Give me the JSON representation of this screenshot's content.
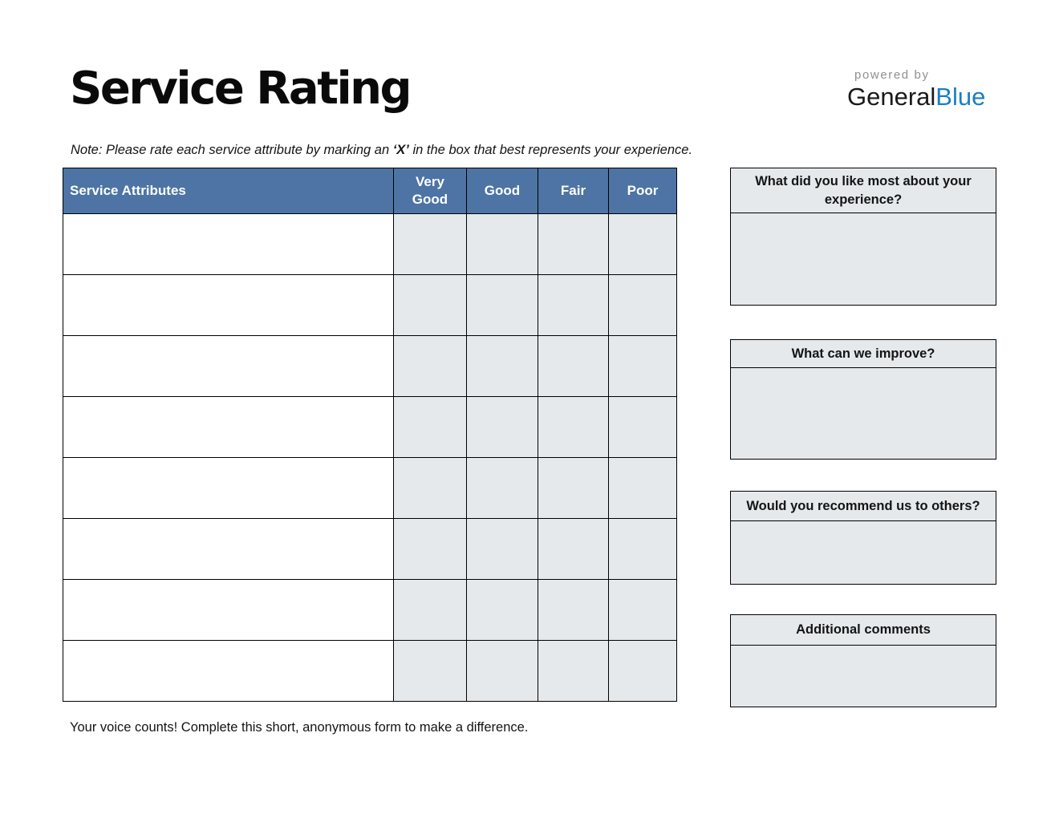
{
  "header": {
    "title": "Service Rating",
    "logo": {
      "powered_by": "powered by",
      "brand_dark": "General",
      "brand_blue": "Blue"
    }
  },
  "note": {
    "prefix": "Note: Please rate each service attribute by marking an ",
    "marker": "‘X’",
    "suffix": " in the box that best represents your experience."
  },
  "table": {
    "columns": [
      "Service Attributes",
      "Very Good",
      "Good",
      "Fair",
      "Poor"
    ],
    "row_count": 8,
    "rows": [
      [
        "",
        "",
        "",
        "",
        ""
      ],
      [
        "",
        "",
        "",
        "",
        ""
      ],
      [
        "",
        "",
        "",
        "",
        ""
      ],
      [
        "",
        "",
        "",
        "",
        ""
      ],
      [
        "",
        "",
        "",
        "",
        ""
      ],
      [
        "",
        "",
        "",
        "",
        ""
      ],
      [
        "",
        "",
        "",
        "",
        ""
      ],
      [
        "",
        "",
        "",
        "",
        ""
      ]
    ]
  },
  "feedback_boxes": [
    {
      "title": "What did you like most about your experience?",
      "value": ""
    },
    {
      "title": "What can we improve?",
      "value": ""
    },
    {
      "title": "Would you recommend us to others?",
      "value": ""
    },
    {
      "title": "Additional comments",
      "value": ""
    }
  ],
  "footer": {
    "text": "Your voice counts! Complete this short, anonymous form to make a difference."
  },
  "colors": {
    "table_header_bg": "#4d74a4",
    "cell_fill": "#e6e9ec",
    "brand_blue": "#1b7fc3",
    "powered_by_gray": "#8f8f8f"
  }
}
